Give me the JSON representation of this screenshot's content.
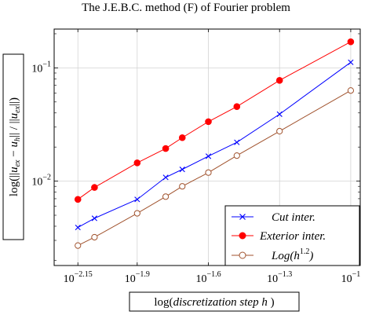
{
  "chart_data": {
    "type": "line",
    "title": "The J.E.B.C. method (F) of Fourier problem",
    "xlabel": "log(discretization step h )",
    "ylabel": "log(||u_ex − u_h|| / ||u_ex||)",
    "x_scale": "log10",
    "y_scale": "log10",
    "xlim_log10": [
      -2.25,
      -0.96
    ],
    "ylim": [
      0.0018,
      0.22
    ],
    "grid": true,
    "legend_position": "bottom-right",
    "x_ticks": [
      {
        "exp": "−2.15",
        "value": -2.15
      },
      {
        "exp": "−1.9",
        "value": -1.9
      },
      {
        "exp": "−1.6",
        "value": -1.6
      },
      {
        "exp": "−1.3",
        "value": -1.3
      },
      {
        "exp": "−1",
        "value": -1.0
      }
    ],
    "y_ticks": [
      {
        "exp": "−1",
        "value": 0.1
      },
      {
        "exp": "−2",
        "value": 0.01
      }
    ],
    "series": [
      {
        "name": "Cut inter.",
        "color": "#0000ff",
        "marker": "x",
        "log10_h": [
          -2.15,
          -2.08,
          -1.9,
          -1.78,
          -1.71,
          -1.6,
          -1.48,
          -1.3,
          -1.0
        ],
        "values": [
          0.0039,
          0.0047,
          0.0069,
          0.0108,
          0.0127,
          0.0166,
          0.022,
          0.039,
          0.112
        ]
      },
      {
        "name": "Exterior inter.",
        "color": "#ff0000",
        "marker": "filled-circle",
        "log10_h": [
          -2.15,
          -2.08,
          -1.9,
          -1.78,
          -1.71,
          -1.6,
          -1.48,
          -1.3,
          -1.0
        ],
        "values": [
          0.0069,
          0.0088,
          0.0145,
          0.0194,
          0.0242,
          0.0335,
          0.0455,
          0.0775,
          0.17
        ]
      },
      {
        "name": "Log(h^{1.2})",
        "color": "#a0522d",
        "marker": "open-circle",
        "log10_h": [
          -2.15,
          -2.08,
          -1.9,
          -1.78,
          -1.71,
          -1.6,
          -1.48,
          -1.3,
          -1.0
        ],
        "values": [
          0.0027,
          0.0032,
          0.0052,
          0.0073,
          0.009,
          0.0119,
          0.0168,
          0.0276,
          0.0631
        ]
      }
    ]
  }
}
